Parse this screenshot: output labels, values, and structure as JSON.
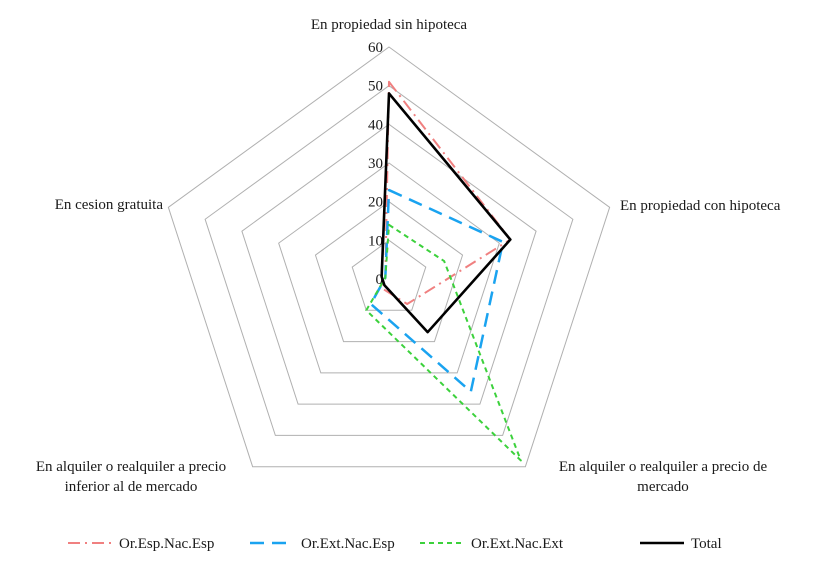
{
  "chart_data": {
    "type": "radar",
    "title": "",
    "axes": [
      "En propiedad sin hipoteca",
      "En propiedad con hipoteca",
      "En alquiler o realquiler a precio de mercado",
      "En alquiler o realquiler a precio inferior al de mercado",
      "En cesion gratuita"
    ],
    "axis_label_lines": [
      [
        "En propiedad sin hipoteca"
      ],
      [
        "En propiedad con hipoteca"
      ],
      [
        "En alquiler o realquiler a precio de",
        "mercado"
      ],
      [
        "En alquiler o realquiler a precio",
        "inferior al de mercado"
      ],
      [
        "En cesion gratuita"
      ]
    ],
    "r_range": [
      0,
      60
    ],
    "ticks": [
      "0",
      "10",
      "20",
      "30",
      "40",
      "50",
      "60"
    ],
    "grid": true,
    "legend_position": "bottom",
    "series": [
      {
        "name": "Or.Esp.Nac.Esp",
        "values": [
          51,
          33,
          8,
          3,
          1
        ],
        "color": "#f08080",
        "dash": "dash-dot"
      },
      {
        "name": "Or.Ext.Nac.Esp",
        "values": [
          23,
          31,
          36,
          8,
          1
        ],
        "color": "#1aa3f0",
        "dash": "dashed"
      },
      {
        "name": "Or.Ext.Nac.Ext",
        "values": [
          14,
          15,
          58,
          10,
          1
        ],
        "color": "#3cd13c",
        "dash": "dotted"
      },
      {
        "name": "Total",
        "values": [
          48,
          33,
          17,
          2,
          2
        ],
        "color": "#000000",
        "dash": "solid"
      }
    ]
  }
}
